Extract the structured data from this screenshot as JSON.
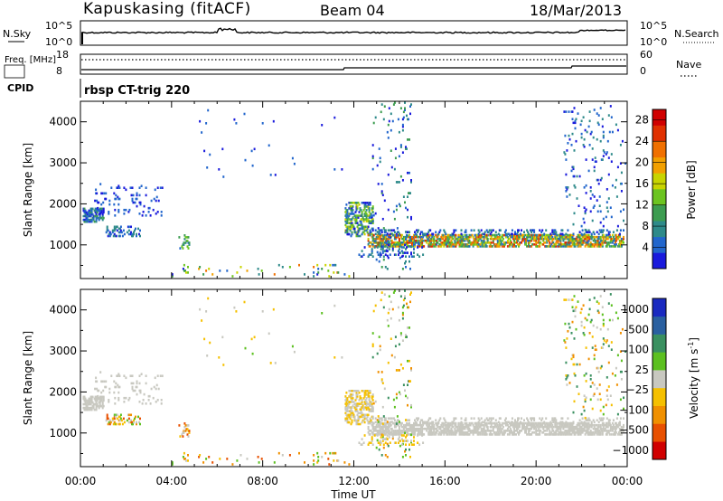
{
  "header": {
    "station": "Kapuskasing (fitACF)",
    "beam": "Beam 04",
    "date": "18/Mar/2013"
  },
  "program_label": "rbsp CT-trig 220",
  "colors": {
    "power": [
      "#1a1adc",
      "#2266cc",
      "#2e8a8a",
      "#3c9c50",
      "#6cc420",
      "#c8d400",
      "#f2a000",
      "#f07000",
      "#e03000",
      "#d00000"
    ],
    "velocity": [
      "#d00000",
      "#e85000",
      "#f09000",
      "#f5c000",
      "#c8c8c0",
      "#5cc020",
      "#3a9060",
      "#2a60a0",
      "#1a2ac0"
    ]
  },
  "chart_data": [
    {
      "type": "line",
      "panel": "noise",
      "left_label": "N.Sky",
      "right_label": "N.Search",
      "left_ticks": [
        "10^5",
        "10^0"
      ],
      "right_ticks": [
        "10^5",
        "10^0"
      ]
    },
    {
      "type": "line",
      "panel": "frequency-nave",
      "left_label": "Freq. [MHz]",
      "right_label": "Nave",
      "left_ticks": [
        "18",
        "8"
      ],
      "right_ticks": [
        "60",
        "0"
      ],
      "freq_mhz": 8.0,
      "nave": 30
    },
    {
      "type": "heatmap",
      "panel": "cpid",
      "label": "CPID"
    },
    {
      "type": "heatmap",
      "panel": "power",
      "ylabel": "Slant Range [km]",
      "ylim": [
        180,
        4500
      ],
      "yticks": [
        1000,
        2000,
        3000,
        4000
      ],
      "xlim": [
        0,
        24
      ],
      "colorbar_label": "Power [dB]",
      "colorbar_ticks": [
        "4",
        "8",
        "12",
        "16",
        "20",
        "24",
        "28"
      ],
      "colorbar_range": [
        0,
        30
      ]
    },
    {
      "type": "heatmap",
      "panel": "velocity",
      "ylabel": "Slant Range [km]",
      "xlabel": "Time UT",
      "ylim": [
        180,
        4500
      ],
      "yticks": [
        1000,
        2000,
        3000,
        4000
      ],
      "xlim": [
        0,
        24
      ],
      "xticks": [
        "00:00",
        "04:00",
        "08:00",
        "12:00",
        "16:00",
        "20:00",
        "00:00"
      ],
      "colorbar_label": "Velocity [m s^-1]",
      "colorbar_ticks": [
        "1000",
        "500",
        "100",
        "25",
        "−25",
        "−100",
        "−500",
        "−1000"
      ]
    }
  ],
  "scatter_regions": [
    {
      "t0": 0.1,
      "t1": 1.0,
      "r0": 1550,
      "r1": 1900,
      "density": 0.55,
      "pmin": 0,
      "pmax": 3,
      "vmin": 4,
      "vmax": 4
    },
    {
      "t0": 0.6,
      "t1": 3.6,
      "r0": 1700,
      "r1": 2500,
      "density": 0.06,
      "pmin": 0,
      "pmax": 1,
      "vmin": 4,
      "vmax": 4
    },
    {
      "t0": 1.1,
      "t1": 2.6,
      "r0": 1200,
      "r1": 1450,
      "density": 0.25,
      "pmin": 0,
      "pmax": 2,
      "vmin": 1,
      "vmax": 5
    },
    {
      "t0": 4.3,
      "t1": 4.8,
      "r0": 900,
      "r1": 1250,
      "density": 0.25,
      "pmin": 1,
      "pmax": 4,
      "vmin": 1,
      "vmax": 4
    },
    {
      "t0": 4.0,
      "t1": 11.8,
      "r0": 220,
      "r1": 500,
      "density": 0.035,
      "pmin": 0,
      "pmax": 7,
      "vmin": 1,
      "vmax": 5
    },
    {
      "t0": 11.6,
      "t1": 12.8,
      "r0": 1200,
      "r1": 2050,
      "density": 0.35,
      "pmin": 0,
      "pmax": 5,
      "vmin": 3,
      "vmax": 4
    },
    {
      "t0": 12.6,
      "t1": 23.8,
      "r0": 950,
      "r1": 1250,
      "density": 0.55,
      "pmin": 1,
      "pmax": 8,
      "vmin": 4,
      "vmax": 4
    },
    {
      "t0": 12.8,
      "t1": 23.8,
      "r0": 1250,
      "r1": 1350,
      "density": 0.2,
      "pmin": 0,
      "pmax": 2,
      "vmin": 4,
      "vmax": 4
    },
    {
      "t0": 21.2,
      "t1": 23.9,
      "r0": 1350,
      "r1": 4400,
      "density": 0.03,
      "pmin": 0,
      "pmax": 2,
      "vmin": 2,
      "vmax": 6
    },
    {
      "t0": 12.8,
      "t1": 14.5,
      "r0": 400,
      "r1": 4500,
      "density": 0.03,
      "pmin": 0,
      "pmax": 3,
      "vmin": 2,
      "vmax": 6
    },
    {
      "t0": 12.2,
      "t1": 15.0,
      "r0": 700,
      "r1": 950,
      "density": 0.15,
      "pmin": 0,
      "pmax": 2,
      "vmin": 3,
      "vmax": 4
    },
    {
      "t0": 5.0,
      "t1": 11.5,
      "r0": 2600,
      "r1": 4300,
      "density": 0.004,
      "pmin": 0,
      "pmax": 1,
      "vmin": 3,
      "vmax": 5
    }
  ]
}
